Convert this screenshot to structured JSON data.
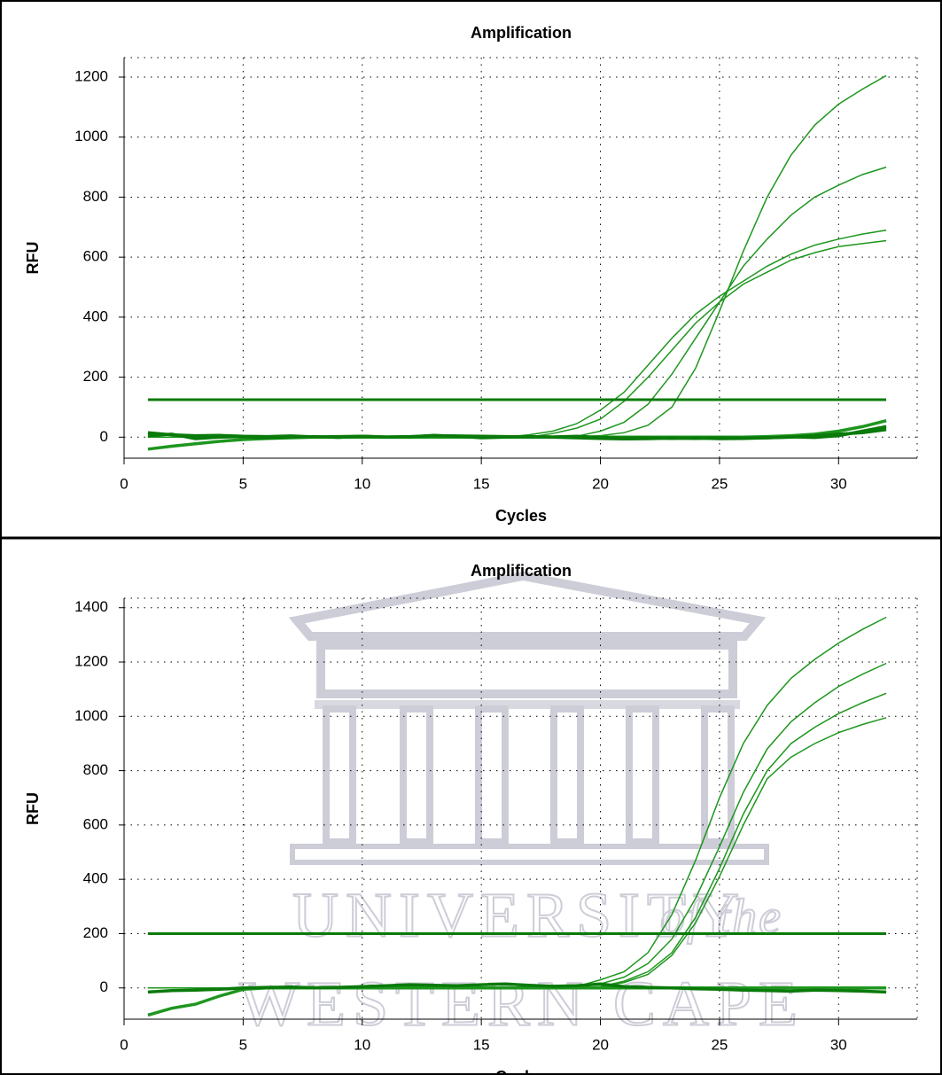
{
  "chart_data": [
    {
      "type": "line",
      "title": "Amplification",
      "xlabel": "Cycles",
      "ylabel": "RFU",
      "x": [
        1,
        2,
        3,
        4,
        5,
        6,
        7,
        8,
        9,
        10,
        11,
        12,
        13,
        14,
        15,
        16,
        17,
        18,
        19,
        20,
        21,
        22,
        23,
        24,
        25,
        26,
        27,
        28,
        29,
        30,
        31,
        32
      ],
      "series": [
        {
          "color": "#1e961e",
          "values": [
            0,
            0,
            0,
            0,
            0,
            0,
            0,
            0,
            0,
            0,
            0,
            0,
            0,
            0,
            0,
            0,
            0,
            0,
            2,
            5,
            15,
            40,
            100,
            230,
            420,
            620,
            800,
            940,
            1040,
            1110,
            1160,
            1205
          ]
        },
        {
          "color": "#1e961e",
          "values": [
            0,
            0,
            0,
            0,
            0,
            0,
            0,
            0,
            0,
            0,
            0,
            0,
            0,
            0,
            0,
            0,
            0,
            0,
            3,
            20,
            50,
            110,
            210,
            330,
            450,
            570,
            660,
            740,
            800,
            840,
            875,
            900
          ]
        },
        {
          "color": "#1e961e",
          "values": [
            0,
            0,
            0,
            0,
            0,
            0,
            0,
            0,
            0,
            0,
            0,
            0,
            0,
            0,
            0,
            0,
            8,
            20,
            45,
            90,
            150,
            240,
            330,
            410,
            470,
            520,
            570,
            610,
            640,
            660,
            677,
            690
          ]
        },
        {
          "color": "#1e961e",
          "values": [
            0,
            0,
            0,
            0,
            0,
            0,
            0,
            0,
            0,
            0,
            0,
            0,
            0,
            0,
            0,
            0,
            0,
            12,
            30,
            60,
            120,
            200,
            290,
            380,
            450,
            510,
            550,
            590,
            615,
            635,
            645,
            655
          ]
        },
        {
          "color": "#1e961e",
          "values": [
            -40,
            -30,
            -22,
            -14,
            -8,
            -4,
            -2,
            0,
            0,
            0,
            0,
            0,
            0,
            0,
            0,
            0,
            0,
            0,
            0,
            0,
            0,
            0,
            0,
            0,
            0,
            0,
            2,
            5,
            10,
            20,
            35,
            55
          ]
        },
        {
          "color": "#0a7a0a",
          "values": [
            15,
            8,
            5,
            6,
            3,
            2,
            4,
            1,
            2,
            3,
            1,
            2,
            5,
            4,
            3,
            2,
            1,
            0,
            -2,
            -4,
            -6,
            -5,
            -3,
            -4,
            -2,
            -3,
            -2,
            0,
            5,
            10,
            15,
            25
          ]
        },
        {
          "color": "#0a7a0a",
          "values": [
            5,
            10,
            -5,
            0,
            2,
            -3,
            1,
            2,
            -1,
            3,
            0,
            1,
            6,
            3,
            -2,
            0,
            2,
            1,
            3,
            -1,
            -3,
            -2,
            -4,
            -3,
            -5,
            -4,
            -2,
            1,
            -1,
            5,
            20,
            35
          ]
        }
      ],
      "threshold": 125,
      "threshold_color": "#0a7a0a",
      "xlim": [
        0,
        33.3
      ],
      "ylim": [
        -70,
        1265
      ],
      "xticks": [
        0,
        5,
        10,
        15,
        20,
        25,
        30
      ],
      "yticks": [
        0,
        200,
        400,
        600,
        800,
        1000,
        1200
      ],
      "grid": true
    },
    {
      "type": "line",
      "title": "Amplification",
      "xlabel": "Cycles",
      "ylabel": "RFU",
      "x": [
        1,
        2,
        3,
        4,
        5,
        6,
        7,
        8,
        9,
        10,
        11,
        12,
        13,
        14,
        15,
        16,
        17,
        18,
        19,
        20,
        21,
        22,
        23,
        24,
        25,
        26,
        27,
        28,
        29,
        30,
        31,
        32
      ],
      "series": [
        {
          "color": "#1e961e",
          "values": [
            0,
            0,
            0,
            0,
            0,
            0,
            0,
            0,
            0,
            0,
            0,
            0,
            0,
            0,
            0,
            0,
            0,
            0,
            5,
            30,
            60,
            130,
            270,
            470,
            700,
            900,
            1040,
            1140,
            1210,
            1270,
            1320,
            1365
          ]
        },
        {
          "color": "#1e961e",
          "values": [
            0,
            0,
            0,
            0,
            0,
            0,
            0,
            0,
            0,
            0,
            0,
            0,
            0,
            0,
            0,
            0,
            0,
            0,
            3,
            15,
            40,
            90,
            180,
            330,
            520,
            720,
            880,
            980,
            1050,
            1110,
            1155,
            1195
          ]
        },
        {
          "color": "#1e961e",
          "values": [
            0,
            0,
            0,
            0,
            0,
            0,
            0,
            0,
            0,
            0,
            0,
            0,
            0,
            0,
            0,
            0,
            0,
            0,
            0,
            5,
            25,
            60,
            130,
            260,
            440,
            640,
            800,
            900,
            960,
            1010,
            1050,
            1085
          ]
        },
        {
          "color": "#1e961e",
          "values": [
            0,
            0,
            0,
            0,
            0,
            0,
            0,
            0,
            0,
            0,
            0,
            0,
            0,
            0,
            0,
            0,
            0,
            0,
            0,
            4,
            20,
            50,
            120,
            240,
            410,
            600,
            770,
            850,
            900,
            940,
            970,
            995
          ]
        },
        {
          "color": "#1e961e",
          "values": [
            -100,
            -75,
            -60,
            -30,
            -5,
            0,
            0,
            0,
            0,
            0,
            0,
            0,
            0,
            0,
            0,
            0,
            0,
            0,
            0,
            0,
            0,
            0,
            0,
            0,
            0,
            0,
            0,
            0,
            0,
            0,
            0,
            0
          ]
        },
        {
          "color": "#0a7a0a",
          "values": [
            -15,
            -10,
            -8,
            -5,
            0,
            2,
            3,
            1,
            2,
            5,
            8,
            12,
            10,
            8,
            12,
            15,
            10,
            6,
            8,
            15,
            5,
            2,
            0,
            -3,
            -5,
            -8,
            -10,
            -12,
            -8,
            -10,
            -12,
            -15
          ]
        }
      ],
      "threshold": 200,
      "threshold_color": "#0a7a0a",
      "xlim": [
        0,
        33.3
      ],
      "ylim": [
        -115,
        1435
      ],
      "xticks": [
        0,
        5,
        10,
        15,
        20,
        25,
        30
      ],
      "yticks": [
        0,
        200,
        400,
        600,
        800,
        1000,
        1200,
        1400
      ],
      "grid": true
    }
  ],
  "watermark": {
    "line1": "UNIVERSITY",
    "line1b": "of the",
    "line2": "WESTERN CAPE"
  }
}
